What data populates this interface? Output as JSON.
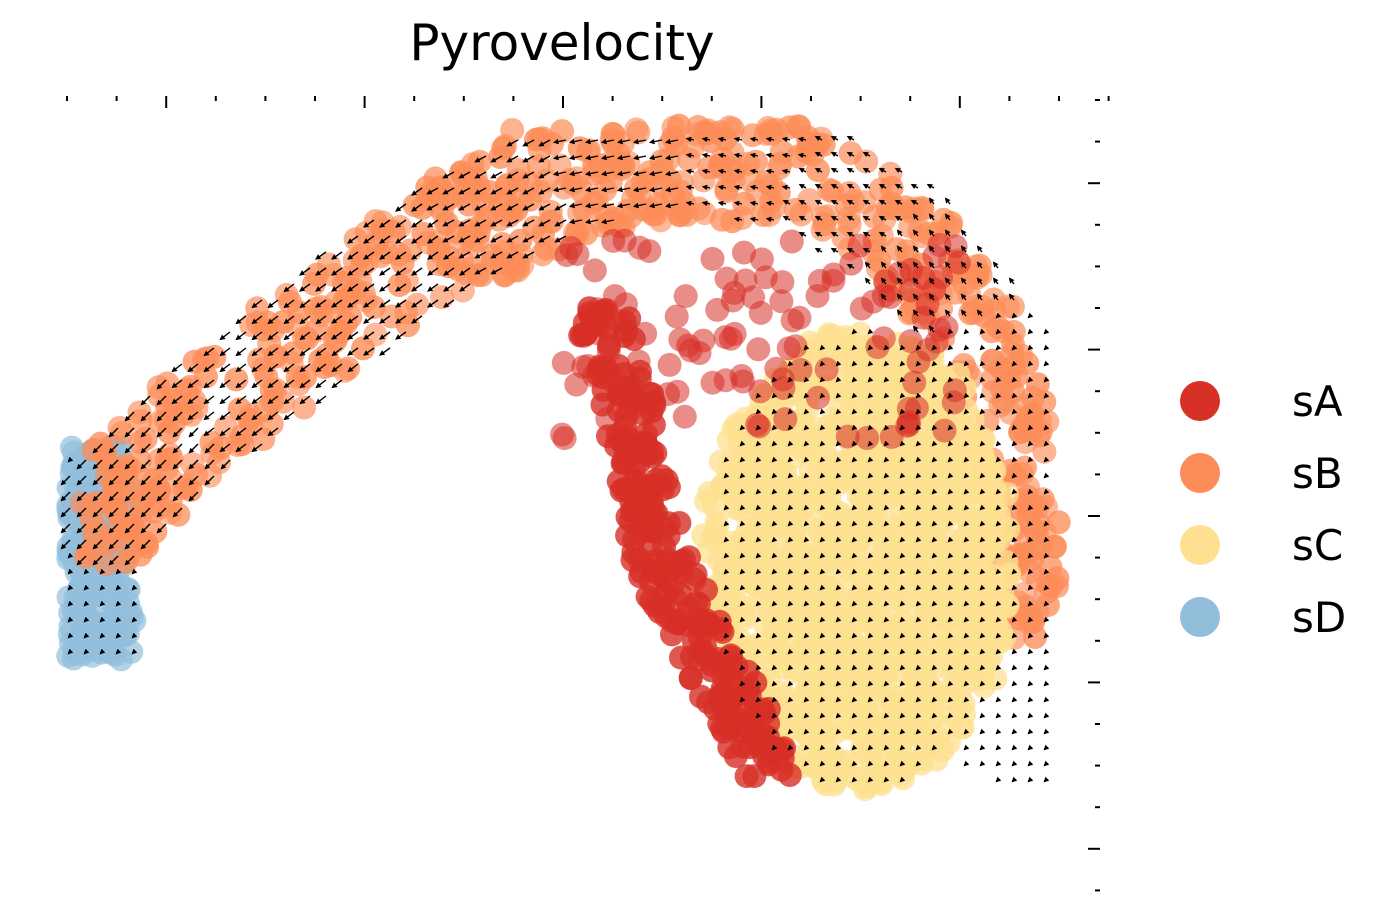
{
  "chart_data": {
    "type": "scatter",
    "title": "Pyrovelocity",
    "xlabel": "",
    "ylabel": "",
    "grid": false,
    "legend_position": "right",
    "series": [
      {
        "name": "sA",
        "color": "#d73027"
      },
      {
        "name": "sB",
        "color": "#fc8d59"
      },
      {
        "name": "sC",
        "color": "#fee090"
      },
      {
        "name": "sD",
        "color": "#91bfdb"
      }
    ],
    "overlay": "velocity stream arrows on grid",
    "axis_ticks": {
      "top": true,
      "right": true,
      "tick_labels": false
    }
  }
}
